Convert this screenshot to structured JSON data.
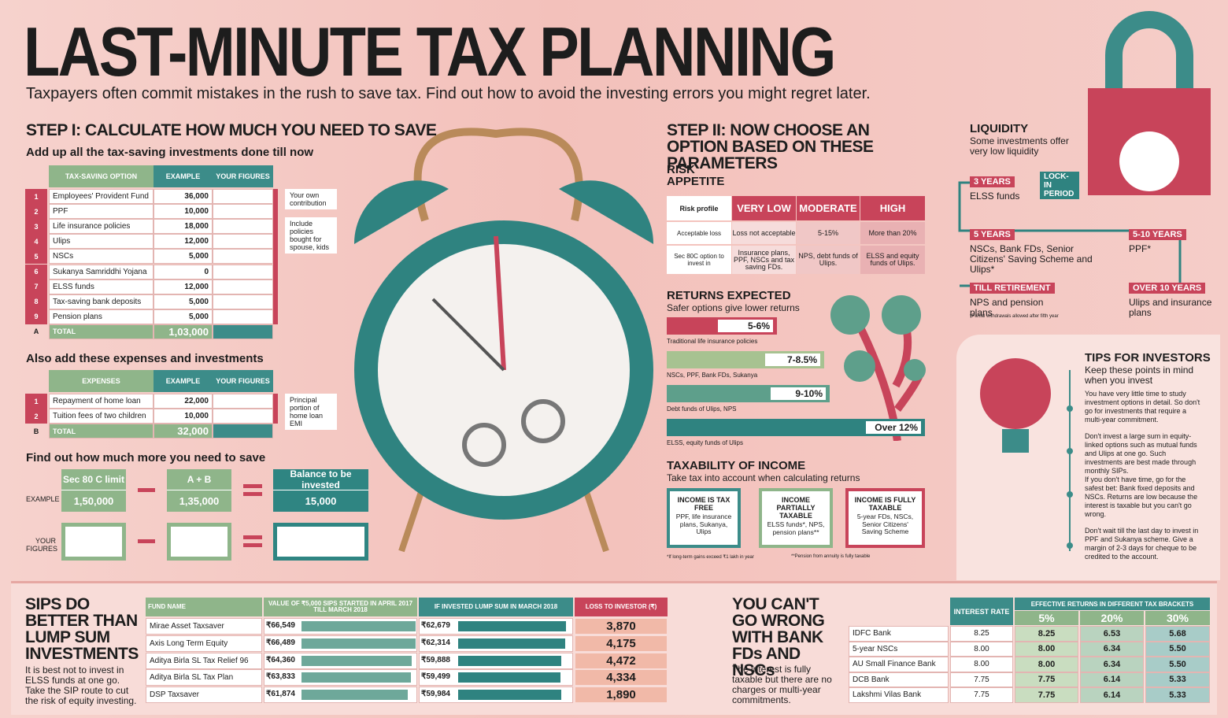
{
  "header": {
    "title": "LAST-MINUTE TAX PLANNING",
    "subtitle": "Taxpayers often commit mistakes in the rush to save tax. Find out how to avoid the investing errors you might regret later."
  },
  "step1": {
    "title": "STEP I: CALCULATE HOW MUCH YOU NEED TO SAVE",
    "subtitle": "Add up all the tax-saving investments done till now",
    "table": {
      "headers": [
        "TAX-SAVING OPTION",
        "EXAMPLE",
        "YOUR FIGURES"
      ],
      "rows": [
        [
          "1",
          "Employees' Provident Fund",
          "36,000"
        ],
        [
          "2",
          "PPF",
          "10,000"
        ],
        [
          "3",
          "Life insurance policies",
          "18,000"
        ],
        [
          "4",
          "Ulips",
          "12,000"
        ],
        [
          "5",
          "NSCs",
          "5,000"
        ],
        [
          "6",
          "Sukanya Samriddhi Yojana",
          "0"
        ],
        [
          "7",
          "ELSS funds",
          "12,000"
        ],
        [
          "8",
          "Tax-saving bank deposits",
          "5,000"
        ],
        [
          "9",
          "Pension plans",
          "5,000"
        ]
      ],
      "total": [
        "A",
        "TOTAL",
        "1,03,000"
      ],
      "notes": [
        "Your own contribution",
        "Include policies bought for spouse, kids"
      ]
    },
    "expenses_title": "Also add these expenses and investments",
    "expenses": {
      "headers": [
        "EXPENSES",
        "EXAMPLE",
        "YOUR FIGURES"
      ],
      "rows": [
        [
          "1",
          "Repayment of home loan",
          "22,000"
        ],
        [
          "2",
          "Tuition fees of two children",
          "10,000"
        ]
      ],
      "total": [
        "B",
        "TOTAL",
        "32,000"
      ],
      "notes": [
        "Principal portion of home loan EMI"
      ]
    },
    "find": {
      "title": "Find out how much more you need to save",
      "example_label": "EXAMPLE",
      "your_label": "YOUR FIGURES",
      "boxes": [
        {
          "head": "Sec 80 C limit",
          "value": "1,50,000"
        },
        {
          "head": "A + B",
          "value": "1,35,000"
        },
        {
          "head": "Balance to be invested",
          "value": "15,000"
        }
      ]
    }
  },
  "step2": {
    "title": "STEP II: NOW CHOOSE AN OPTION BASED ON THESE PARAMETERS",
    "risk": {
      "title": "RISK APPETITE",
      "header": [
        "Risk profile",
        "VERY LOW",
        "MODERATE",
        "HIGH"
      ],
      "rows": [
        [
          "Acceptable loss",
          "Loss not acceptable",
          "5-15%",
          "More than 20%"
        ],
        [
          "Sec 80C option to invest in",
          "Insurance plans, PPF, NSCs and tax saving FDs.",
          "NPS, debt funds of Ulips.",
          "ELSS and equity funds of Ulips."
        ]
      ]
    },
    "returns": {
      "title": "RETURNS EXPECTED",
      "subtitle": "Safer options give lower returns",
      "bars": [
        {
          "label": "5-6%",
          "caption": "Traditional life insurance policies"
        },
        {
          "label": "7-8.5%",
          "caption": "NSCs, PPF, Bank FDs, Sukanya"
        },
        {
          "label": "9-10%",
          "caption": "Debt funds of Ulips, NPS"
        },
        {
          "label": "Over 12%",
          "caption": "ELSS, equity funds of Ulips"
        }
      ]
    },
    "tax": {
      "title": "TAXABILITY OF INCOME",
      "subtitle": "Take tax into account when calculating returns",
      "boxes": [
        {
          "head": "INCOME IS TAX FREE",
          "body": "PPF, life insurance plans, Sukanya, Ulips"
        },
        {
          "head": "INCOME PARTIALLY TAXABLE",
          "body": "ELSS funds*, NPS, pension plans**"
        },
        {
          "head": "INCOME IS FULLY TAXABLE",
          "body": "5-year FDs, NSCs, Senior Citizens' Saving Scheme"
        }
      ],
      "footnotes": [
        "*If long-term gains exceed ₹1 lakh in year",
        "**Pension from annuity is fully taxable"
      ]
    }
  },
  "liquidity": {
    "title": "LIQUIDITY",
    "subtitle": "Some investments offer very low liquidity",
    "lockin": "LOCK-IN PERIOD",
    "items": [
      {
        "period": "3 YEARS",
        "text": "ELSS funds"
      },
      {
        "period": "5 YEARS",
        "text": "NSCs, Bank FDs, Senior Citizens' Saving Scheme and Ulips*"
      },
      {
        "period": "5-10 YEARS",
        "text": "PPF*"
      },
      {
        "period": "TILL RETIREMENT",
        "text": "NPS and pension plans"
      },
      {
        "period": "OVER 10 YEARS",
        "text": "Ulips and insurance plans"
      }
    ],
    "note": "*Partial withdrawals allowed after fifth year"
  },
  "tips": {
    "title": "TIPS FOR INVESTORS",
    "subtitle": "Keep these points in mind when you invest",
    "items": [
      "You have very little time to study investment options in detail. So don't go for investments that require a multi-year commitment.",
      "Don't invest a large sum in equity-linked options such as mutual funds and Ulips at one go. Such investments are best made through monthly SIPs.",
      "If you don't have time, go for the safest bet: Bank fixed deposits and NSCs. Returns are low because the interest is taxable but you can't go wrong.",
      "Don't wait till the last day to invest in PPF and Sukanya scheme. Give a margin of 2-3 days for cheque to be credited to the account."
    ]
  },
  "sips": {
    "title": "SIPS DO BETTER THAN LUMP SUM INVESTMENTS",
    "text": "It is best not to invest in ELSS funds at one go. Take the SIP route to cut the risk of equity investing.",
    "headers": [
      "FUND NAME",
      "VALUE OF ₹5,000 SIPS STARTED IN APRIL 2017 TILL MARCH 2018",
      "IF INVESTED LUMP SUM IN MARCH 2018",
      "LOSS TO INVESTOR (₹)"
    ],
    "rows": [
      {
        "fund": "Mirae Asset Taxsaver",
        "sip": 66549,
        "sip_label": "₹66,549",
        "lump": 62679,
        "lump_label": "₹62,679",
        "loss": "3,870"
      },
      {
        "fund": "Axis Long Term Equity",
        "sip": 66489,
        "sip_label": "₹66,489",
        "lump": 62314,
        "lump_label": "₹62,314",
        "loss": "4,175"
      },
      {
        "fund": "Aditya Birla SL Tax Relief 96",
        "sip": 64360,
        "sip_label": "₹64,360",
        "lump": 59888,
        "lump_label": "₹59,888",
        "loss": "4,472"
      },
      {
        "fund": "Aditya Birla SL Tax Plan",
        "sip": 63833,
        "sip_label": "₹63,833",
        "lump": 59499,
        "lump_label": "₹59,499",
        "loss": "4,334"
      },
      {
        "fund": "DSP Taxsaver",
        "sip": 61874,
        "sip_label": "₹61,874",
        "lump": 59984,
        "lump_label": "₹59,984",
        "loss": "1,890"
      }
    ]
  },
  "fds": {
    "title": "YOU CAN'T GO WRONG WITH BANK FDs AND NSCs",
    "text": "The interest is fully taxable but there are no charges or multi-year commitments.",
    "rate_header": "INTEREST RATE",
    "brackets_header": "EFFECTIVE RETURNS IN DIFFERENT TAX BRACKETS",
    "brackets": [
      "5%",
      "20%",
      "30%"
    ],
    "rows": [
      [
        "IDFC Bank",
        "8.25",
        "8.25",
        "6.53",
        "5.68"
      ],
      [
        "5-year NSCs",
        "8.00",
        "8.00",
        "6.34",
        "5.50"
      ],
      [
        "AU Small Finance Bank",
        "8.00",
        "8.00",
        "6.34",
        "5.50"
      ],
      [
        "DCB Bank",
        "7.75",
        "7.75",
        "6.14",
        "5.33"
      ],
      [
        "Lakshmi Vilas Bank",
        "7.75",
        "7.75",
        "6.14",
        "5.33"
      ]
    ]
  }
}
